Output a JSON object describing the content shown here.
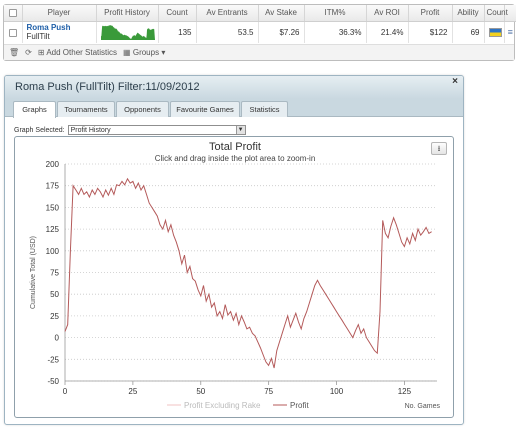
{
  "stats_table": {
    "headers": [
      "Player",
      "Profit History",
      "Count",
      "Av Entrants",
      "Av Stake",
      "ITM%",
      "Av ROI",
      "Profit",
      "Ability",
      "Count"
    ],
    "row": {
      "player_name": "Roma Push",
      "player_site": "FullTilt",
      "count": "135",
      "av_entrants": "53.5",
      "av_stake": "$7.26",
      "itm": "36.3%",
      "av_roi": "21.4%",
      "profit": "$122",
      "ability": "69",
      "count_icon": "flag-icon",
      "menu_icon": "list-icon",
      "sparkline_color": "#3a9a3a"
    },
    "toolbar": {
      "add_stats_label": "Add Other Statistics",
      "groups_label": "Groups"
    }
  },
  "window": {
    "title": "Roma Push (FullTilt) Filter:11/09/2012",
    "close_label": "×",
    "tabs": [
      "Graphs",
      "Tournaments",
      "Opponents",
      "Favourite Games",
      "Statistics"
    ],
    "active_tab": "Graphs",
    "graph_selected_label": "Graph Selected:",
    "graph_selected_value": "Profit History",
    "download_icon": "download-icon"
  },
  "chart_data": {
    "type": "line",
    "title": "Total Profit",
    "subtitle": "Click and drag inside the plot area to zoom-in",
    "ylabel": "Cumulative Total (USD)",
    "xlabel": "No. Games",
    "xlim": [
      0,
      137
    ],
    "ylim": [
      -50,
      200
    ],
    "y_ticks": [
      "200",
      "175",
      "150",
      "125",
      "100",
      "75",
      "50",
      "25",
      "0",
      "-25",
      "-50"
    ],
    "x_ticks": [
      "0",
      "25",
      "50",
      "75",
      "100",
      "125"
    ],
    "legend": [
      "Profit Excluding Rake",
      "Profit"
    ],
    "legend_colors": [
      "#f2c3c3",
      "#b45a5a"
    ],
    "grid": true,
    "series": [
      {
        "name": "Profit",
        "color": "#b45a5a",
        "points": [
          [
            0,
            7
          ],
          [
            1,
            15
          ],
          [
            2,
            100
          ],
          [
            3,
            175
          ],
          [
            4,
            170
          ],
          [
            5,
            165
          ],
          [
            6,
            172
          ],
          [
            7,
            165
          ],
          [
            8,
            168
          ],
          [
            9,
            162
          ],
          [
            10,
            170
          ],
          [
            11,
            165
          ],
          [
            12,
            172
          ],
          [
            13,
            168
          ],
          [
            14,
            162
          ],
          [
            15,
            170
          ],
          [
            16,
            164
          ],
          [
            17,
            172
          ],
          [
            18,
            165
          ],
          [
            19,
            176
          ],
          [
            20,
            175
          ],
          [
            21,
            180
          ],
          [
            22,
            176
          ],
          [
            23,
            183
          ],
          [
            24,
            178
          ],
          [
            25,
            180
          ],
          [
            26,
            172
          ],
          [
            27,
            178
          ],
          [
            28,
            170
          ],
          [
            29,
            175
          ],
          [
            30,
            165
          ],
          [
            31,
            155
          ],
          [
            32,
            150
          ],
          [
            33,
            145
          ],
          [
            34,
            140
          ],
          [
            35,
            130
          ],
          [
            36,
            125
          ],
          [
            37,
            135
          ],
          [
            38,
            122
          ],
          [
            39,
            130
          ],
          [
            40,
            118
          ],
          [
            41,
            110
          ],
          [
            42,
            100
          ],
          [
            43,
            85
          ],
          [
            44,
            95
          ],
          [
            45,
            75
          ],
          [
            46,
            82
          ],
          [
            47,
            68
          ],
          [
            48,
            65
          ],
          [
            49,
            55
          ],
          [
            50,
            48
          ],
          [
            51,
            60
          ],
          [
            52,
            42
          ],
          [
            53,
            50
          ],
          [
            54,
            35
          ],
          [
            55,
            40
          ],
          [
            56,
            25
          ],
          [
            57,
            30
          ],
          [
            58,
            22
          ],
          [
            59,
            38
          ],
          [
            60,
            26
          ],
          [
            61,
            30
          ],
          [
            62,
            20
          ],
          [
            63,
            28
          ],
          [
            64,
            15
          ],
          [
            65,
            25
          ],
          [
            66,
            18
          ],
          [
            67,
            10
          ],
          [
            68,
            12
          ],
          [
            69,
            5
          ],
          [
            70,
            2
          ],
          [
            71,
            -5
          ],
          [
            72,
            -12
          ],
          [
            73,
            -20
          ],
          [
            74,
            -28
          ],
          [
            75,
            -32
          ],
          [
            76,
            -24
          ],
          [
            77,
            -35
          ],
          [
            78,
            -15
          ],
          [
            79,
            -5
          ],
          [
            80,
            5
          ],
          [
            81,
            15
          ],
          [
            82,
            25
          ],
          [
            83,
            12
          ],
          [
            84,
            20
          ],
          [
            85,
            28
          ],
          [
            86,
            18
          ],
          [
            87,
            10
          ],
          [
            88,
            22
          ],
          [
            89,
            30
          ],
          [
            90,
            40
          ],
          [
            91,
            50
          ],
          [
            92,
            60
          ],
          [
            93,
            66
          ],
          [
            94,
            60
          ],
          [
            95,
            55
          ],
          [
            96,
            50
          ],
          [
            97,
            45
          ],
          [
            98,
            40
          ],
          [
            99,
            35
          ],
          [
            100,
            30
          ],
          [
            101,
            25
          ],
          [
            102,
            20
          ],
          [
            103,
            15
          ],
          [
            104,
            10
          ],
          [
            105,
            5
          ],
          [
            106,
            0
          ],
          [
            107,
            8
          ],
          [
            108,
            15
          ],
          [
            109,
            5
          ],
          [
            110,
            10
          ],
          [
            111,
            0
          ],
          [
            112,
            -5
          ],
          [
            113,
            -10
          ],
          [
            114,
            -15
          ],
          [
            115,
            -18
          ],
          [
            116,
            30
          ],
          [
            117,
            135
          ],
          [
            118,
            120
          ],
          [
            119,
            115
          ],
          [
            120,
            128
          ],
          [
            121,
            138
          ],
          [
            122,
            130
          ],
          [
            123,
            120
          ],
          [
            124,
            110
          ],
          [
            125,
            105
          ],
          [
            126,
            115
          ],
          [
            127,
            108
          ],
          [
            128,
            120
          ],
          [
            129,
            112
          ],
          [
            130,
            125
          ],
          [
            131,
            118
          ],
          [
            132,
            122
          ],
          [
            133,
            127
          ],
          [
            134,
            120
          ],
          [
            135,
            122
          ]
        ]
      }
    ]
  }
}
